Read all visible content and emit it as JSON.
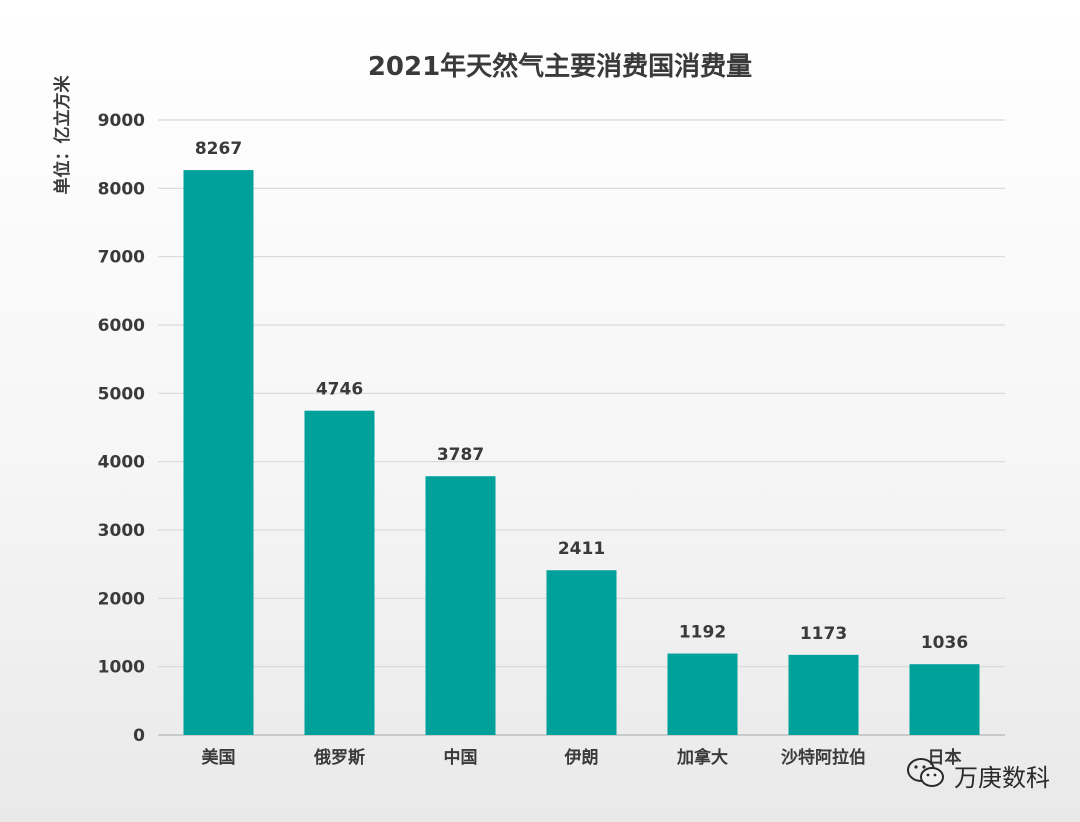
{
  "chart_data": {
    "type": "bar",
    "title": "2021年天然气主要消费国消费量",
    "ylabel": "单位：亿立方米",
    "xlabel": "",
    "categories": [
      "美国",
      "俄罗斯",
      "中国",
      "伊朗",
      "加拿大",
      "沙特阿拉伯",
      "日本"
    ],
    "values": [
      8267,
      4746,
      3787,
      2411,
      1192,
      1173,
      1036
    ],
    "ylim": [
      0,
      9000
    ],
    "yticks": [
      0,
      1000,
      2000,
      3000,
      4000,
      5000,
      6000,
      7000,
      8000,
      9000
    ],
    "bar_color": "#00a19a",
    "grid": true,
    "legend": "none"
  },
  "watermark": {
    "icon": "wechat-icon",
    "text": "万庚数科"
  }
}
